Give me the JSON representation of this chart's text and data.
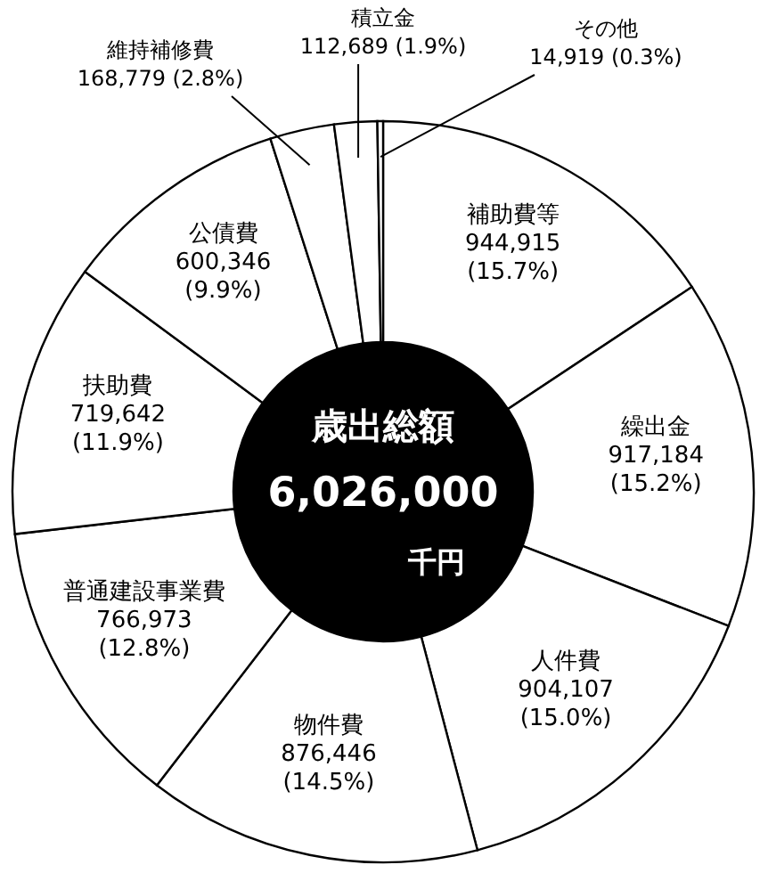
{
  "chart_data": {
    "type": "donut",
    "title": "歳出総額",
    "annotations": [
      "6,026,000",
      "千円"
    ],
    "categories": [
      "補助費等",
      "繰出金",
      "人件費",
      "物件費",
      "普通建設事業費",
      "扶助費",
      "公債費",
      "維持補修費",
      "積立金",
      "その他"
    ],
    "values": [
      944915,
      917184,
      904107,
      876446,
      766973,
      719642,
      600346,
      168779,
      112689,
      14919
    ],
    "value_labels": [
      "944,915 (15.7%)",
      "917,184 (15.2%)",
      "904,107 (15.0%)",
      "876,446 (14.5%)",
      "766,973 (12.8%)",
      "719,642 (11.9%)",
      "600,346 (9.9%)",
      "168,779 (2.8%)",
      "112,689 (1.9%)",
      "14,919 (0.3%)"
    ],
    "colors": [
      "#ffffff",
      "#ffffff",
      "#ffffff",
      "#ffffff",
      "#ffffff",
      "#ffffff",
      "#ffffff",
      "#ffffff",
      "#ffffff",
      "#ffffff"
    ]
  }
}
